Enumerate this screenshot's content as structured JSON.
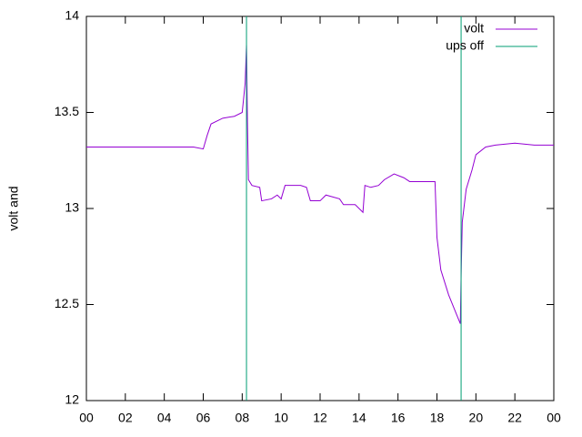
{
  "chart_data": {
    "type": "line",
    "ylabel": "volt and",
    "series": [
      {
        "name": "volt",
        "color": "#9400d3",
        "x": [
          0,
          2,
          4,
          5.5,
          6,
          6.2,
          6.4,
          7,
          7.6,
          8.0,
          8.15,
          8.22,
          8.27,
          8.32,
          8.5,
          8.9,
          9.0,
          9.5,
          9.8,
          10,
          10.2,
          11,
          11.3,
          11.5,
          12,
          12.3,
          13,
          13.2,
          13.8,
          14.2,
          14.3,
          14.6,
          15,
          15.3,
          15.8,
          16.3,
          16.6,
          17.5,
          17.9,
          18,
          18.2,
          18.6,
          19,
          19.2,
          19.24,
          19.3,
          19.5,
          19.8,
          20,
          20.5,
          21,
          22,
          23,
          24
        ],
        "values": [
          13.32,
          13.32,
          13.32,
          13.32,
          13.31,
          13.38,
          13.44,
          13.47,
          13.48,
          13.5,
          13.65,
          13.85,
          13.45,
          13.15,
          13.12,
          13.11,
          13.04,
          13.05,
          13.07,
          13.05,
          13.12,
          13.12,
          13.11,
          13.04,
          13.04,
          13.07,
          13.05,
          13.02,
          13.02,
          12.98,
          13.12,
          13.11,
          13.12,
          13.15,
          13.18,
          13.16,
          13.14,
          13.14,
          13.14,
          12.85,
          12.68,
          12.55,
          12.45,
          12.4,
          12.65,
          12.93,
          13.1,
          13.2,
          13.28,
          13.32,
          13.33,
          13.34,
          13.33,
          13.33
        ]
      },
      {
        "name": "ups off",
        "color": "#009e73",
        "x": [
          8.22,
          8.22,
          8.22,
          19.24,
          19.24
        ],
        "values": [
          12,
          14,
          null,
          12,
          14
        ]
      }
    ],
    "xlim": [
      0,
      24
    ],
    "xticks": [
      {
        "value": 0,
        "label": "00"
      },
      {
        "value": 2,
        "label": "02"
      },
      {
        "value": 4,
        "label": "04"
      },
      {
        "value": 6,
        "label": "06"
      },
      {
        "value": 8,
        "label": "08"
      },
      10,
      12,
      14,
      16,
      18,
      20,
      22,
      {
        "value": 24,
        "label": "00"
      }
    ],
    "ylim": [
      12,
      14
    ],
    "yticks": [
      12,
      12.5,
      13,
      13.5,
      14
    ],
    "legend": "top-right"
  }
}
